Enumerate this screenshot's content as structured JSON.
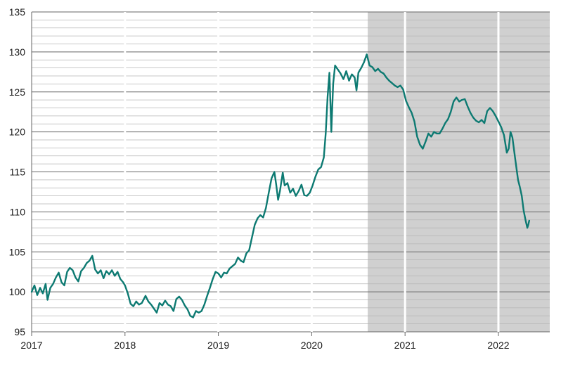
{
  "chart_data": {
    "type": "line",
    "title": "",
    "xlabel": "",
    "ylabel": "",
    "xlim": [
      2017.0,
      2022.55
    ],
    "ylim": [
      95,
      135
    ],
    "y_ticks": [
      95,
      100,
      105,
      110,
      115,
      120,
      125,
      130,
      135
    ],
    "x_ticks": [
      {
        "label": "2017",
        "value": 2017
      },
      {
        "label": "2018",
        "value": 2018
      },
      {
        "label": "2019",
        "value": 2019
      },
      {
        "label": "2020",
        "value": 2020
      },
      {
        "label": "2021",
        "value": 2021
      },
      {
        "label": "2022",
        "value": 2022
      }
    ],
    "grid": true,
    "shaded_region": {
      "x_start": 2020.6,
      "x_end": 2022.55,
      "color": "#d0d0d0"
    },
    "series": [
      {
        "name": "",
        "color": "#0d7a72",
        "points": [
          [
            2017.0,
            100.0
          ],
          [
            2017.03,
            100.8
          ],
          [
            2017.06,
            99.6
          ],
          [
            2017.09,
            100.5
          ],
          [
            2017.12,
            99.8
          ],
          [
            2017.15,
            101.0
          ],
          [
            2017.17,
            99.0
          ],
          [
            2017.2,
            100.5
          ],
          [
            2017.23,
            101.0
          ],
          [
            2017.26,
            101.8
          ],
          [
            2017.29,
            102.4
          ],
          [
            2017.32,
            101.2
          ],
          [
            2017.35,
            100.8
          ],
          [
            2017.38,
            102.5
          ],
          [
            2017.41,
            103.0
          ],
          [
            2017.44,
            102.7
          ],
          [
            2017.47,
            101.8
          ],
          [
            2017.5,
            101.3
          ],
          [
            2017.53,
            102.6
          ],
          [
            2017.56,
            103.0
          ],
          [
            2017.59,
            103.6
          ],
          [
            2017.62,
            103.9
          ],
          [
            2017.65,
            104.5
          ],
          [
            2017.68,
            102.8
          ],
          [
            2017.71,
            102.3
          ],
          [
            2017.74,
            102.7
          ],
          [
            2017.77,
            101.7
          ],
          [
            2017.8,
            102.6
          ],
          [
            2017.83,
            102.2
          ],
          [
            2017.86,
            102.7
          ],
          [
            2017.89,
            102.0
          ],
          [
            2017.92,
            102.5
          ],
          [
            2017.95,
            101.6
          ],
          [
            2017.98,
            101.2
          ],
          [
            2018.0,
            100.8
          ],
          [
            2018.03,
            99.8
          ],
          [
            2018.06,
            98.5
          ],
          [
            2018.09,
            98.2
          ],
          [
            2018.12,
            98.8
          ],
          [
            2018.15,
            98.4
          ],
          [
            2018.18,
            98.6
          ],
          [
            2018.22,
            99.5
          ],
          [
            2018.25,
            98.8
          ],
          [
            2018.28,
            98.4
          ],
          [
            2018.31,
            97.9
          ],
          [
            2018.34,
            97.4
          ],
          [
            2018.37,
            98.6
          ],
          [
            2018.4,
            98.3
          ],
          [
            2018.43,
            98.9
          ],
          [
            2018.46,
            98.4
          ],
          [
            2018.49,
            98.2
          ],
          [
            2018.52,
            97.6
          ],
          [
            2018.55,
            99.1
          ],
          [
            2018.58,
            99.4
          ],
          [
            2018.61,
            99.0
          ],
          [
            2018.64,
            98.3
          ],
          [
            2018.67,
            97.8
          ],
          [
            2018.7,
            97.0
          ],
          [
            2018.73,
            96.8
          ],
          [
            2018.76,
            97.6
          ],
          [
            2018.79,
            97.4
          ],
          [
            2018.82,
            97.6
          ],
          [
            2018.85,
            98.4
          ],
          [
            2018.88,
            99.5
          ],
          [
            2018.91,
            100.5
          ],
          [
            2018.94,
            101.6
          ],
          [
            2018.97,
            102.5
          ],
          [
            2019.0,
            102.3
          ],
          [
            2019.03,
            101.8
          ],
          [
            2019.06,
            102.4
          ],
          [
            2019.09,
            102.3
          ],
          [
            2019.12,
            102.9
          ],
          [
            2019.15,
            103.2
          ],
          [
            2019.18,
            103.5
          ],
          [
            2019.21,
            104.3
          ],
          [
            2019.24,
            103.9
          ],
          [
            2019.27,
            103.7
          ],
          [
            2019.3,
            104.8
          ],
          [
            2019.33,
            105.2
          ],
          [
            2019.36,
            106.8
          ],
          [
            2019.39,
            108.4
          ],
          [
            2019.42,
            109.2
          ],
          [
            2019.45,
            109.6
          ],
          [
            2019.48,
            109.3
          ],
          [
            2019.51,
            110.5
          ],
          [
            2019.54,
            112.4
          ],
          [
            2019.57,
            114.2
          ],
          [
            2019.6,
            115.0
          ],
          [
            2019.62,
            113.4
          ],
          [
            2019.64,
            111.5
          ],
          [
            2019.66,
            112.6
          ],
          [
            2019.69,
            114.9
          ],
          [
            2019.71,
            113.3
          ],
          [
            2019.74,
            113.6
          ],
          [
            2019.77,
            112.4
          ],
          [
            2019.8,
            112.9
          ],
          [
            2019.83,
            112.0
          ],
          [
            2019.86,
            112.6
          ],
          [
            2019.89,
            113.4
          ],
          [
            2019.92,
            112.1
          ],
          [
            2019.95,
            112.0
          ],
          [
            2019.98,
            112.4
          ],
          [
            2020.01,
            113.3
          ],
          [
            2020.04,
            114.4
          ],
          [
            2020.07,
            115.3
          ],
          [
            2020.1,
            115.6
          ],
          [
            2020.13,
            116.8
          ],
          [
            2020.15,
            119.8
          ],
          [
            2020.17,
            124.4
          ],
          [
            2020.19,
            127.4
          ],
          [
            2020.21,
            120.0
          ],
          [
            2020.23,
            126.0
          ],
          [
            2020.25,
            128.3
          ],
          [
            2020.28,
            127.8
          ],
          [
            2020.31,
            127.3
          ],
          [
            2020.34,
            126.6
          ],
          [
            2020.37,
            127.6
          ],
          [
            2020.4,
            126.4
          ],
          [
            2020.43,
            127.2
          ],
          [
            2020.46,
            126.8
          ],
          [
            2020.48,
            125.2
          ],
          [
            2020.5,
            127.4
          ],
          [
            2020.53,
            128.0
          ],
          [
            2020.56,
            128.7
          ],
          [
            2020.59,
            129.7
          ],
          [
            2020.62,
            128.3
          ],
          [
            2020.65,
            128.1
          ],
          [
            2020.68,
            127.6
          ],
          [
            2020.71,
            127.9
          ],
          [
            2020.74,
            127.5
          ],
          [
            2020.77,
            127.3
          ],
          [
            2020.8,
            126.8
          ],
          [
            2020.83,
            126.4
          ],
          [
            2020.86,
            126.1
          ],
          [
            2020.89,
            125.8
          ],
          [
            2020.92,
            125.6
          ],
          [
            2020.95,
            125.8
          ],
          [
            2020.98,
            125.3
          ],
          [
            2021.01,
            123.9
          ],
          [
            2021.04,
            123.1
          ],
          [
            2021.07,
            122.4
          ],
          [
            2021.1,
            121.3
          ],
          [
            2021.13,
            119.4
          ],
          [
            2021.16,
            118.4
          ],
          [
            2021.19,
            117.9
          ],
          [
            2021.22,
            118.8
          ],
          [
            2021.25,
            119.8
          ],
          [
            2021.28,
            119.4
          ],
          [
            2021.31,
            120.0
          ],
          [
            2021.34,
            119.8
          ],
          [
            2021.37,
            119.8
          ],
          [
            2021.4,
            120.4
          ],
          [
            2021.43,
            121.1
          ],
          [
            2021.46,
            121.6
          ],
          [
            2021.49,
            122.5
          ],
          [
            2021.52,
            123.8
          ],
          [
            2021.55,
            124.3
          ],
          [
            2021.58,
            123.8
          ],
          [
            2021.61,
            124.0
          ],
          [
            2021.64,
            124.1
          ],
          [
            2021.67,
            123.2
          ],
          [
            2021.7,
            122.4
          ],
          [
            2021.73,
            121.8
          ],
          [
            2021.76,
            121.4
          ],
          [
            2021.79,
            121.2
          ],
          [
            2021.82,
            121.5
          ],
          [
            2021.85,
            121.1
          ],
          [
            2021.88,
            122.6
          ],
          [
            2021.91,
            123.0
          ],
          [
            2021.94,
            122.6
          ],
          [
            2021.97,
            122.0
          ],
          [
            2022.0,
            121.3
          ],
          [
            2022.03,
            120.6
          ],
          [
            2022.06,
            119.6
          ],
          [
            2022.09,
            117.4
          ],
          [
            2022.11,
            117.9
          ],
          [
            2022.13,
            120.0
          ],
          [
            2022.15,
            119.3
          ],
          [
            2022.18,
            116.6
          ],
          [
            2022.21,
            114.0
          ],
          [
            2022.23,
            113.1
          ],
          [
            2022.25,
            112.0
          ],
          [
            2022.27,
            110.2
          ],
          [
            2022.29,
            109.0
          ],
          [
            2022.31,
            108.0
          ],
          [
            2022.32,
            108.4
          ],
          [
            2022.33,
            108.9
          ]
        ]
      }
    ]
  }
}
